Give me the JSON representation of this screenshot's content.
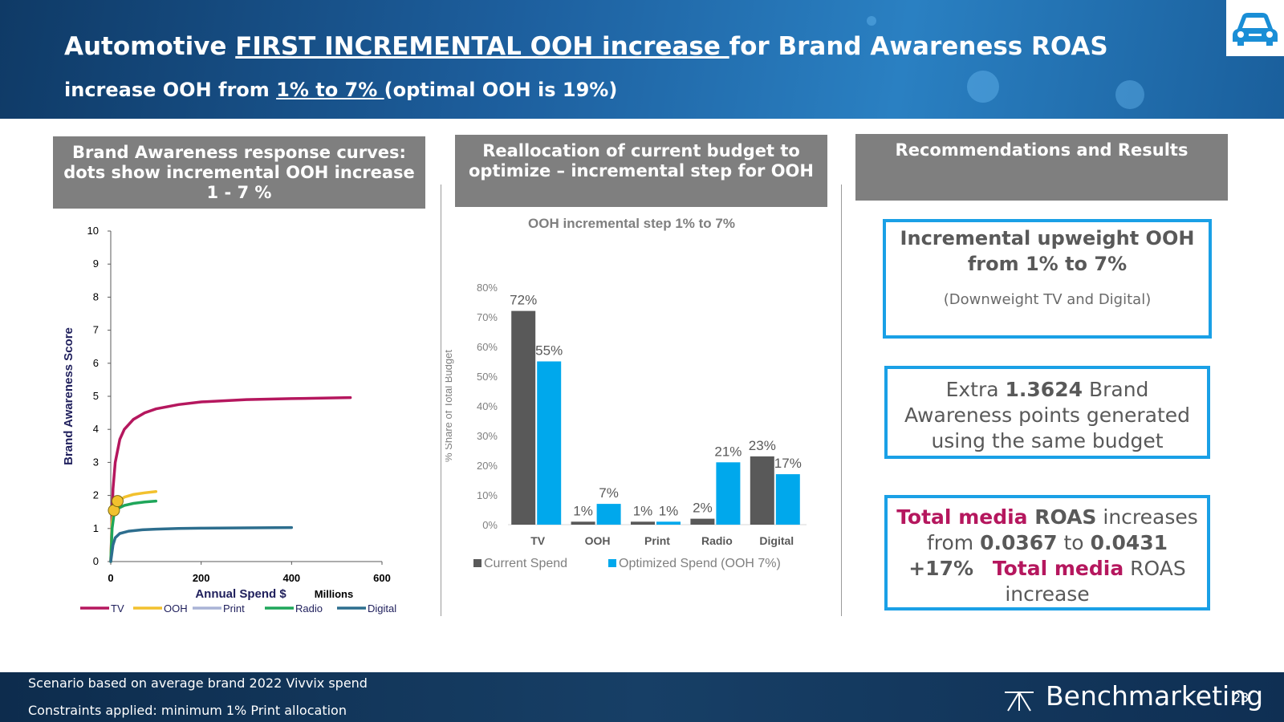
{
  "header": {
    "title_pre": "Automotive ",
    "title_underlined": "FIRST INCREMENTAL OOH increase ",
    "title_post": "for Brand Awareness ROAS",
    "subtitle_pre": "increase OOH from ",
    "subtitle_underlined": "1% to 7% ",
    "subtitle_post": "(optimal OOH is 19%)",
    "icon": "car-icon"
  },
  "columns": {
    "left_header_line1": "Brand Awareness response curves:",
    "left_header_line2": "dots show incremental OOH increase",
    "left_header_line3": "1 - 7 %",
    "mid_header_line1": "Reallocation of current budget to",
    "mid_header_line2": "optimize – incremental step for OOH",
    "right_header": "Recommendations and Results"
  },
  "recommendations": {
    "box1_line1": "Incremental upweight OOH",
    "box1_line2": "from 1% to 7%",
    "box1_note": "(Downweight TV and Digital)",
    "box2_pre": "Extra ",
    "box2_value": "1.3624",
    "box2_line1_post": " Brand",
    "box2_line2": "Awareness points generated",
    "box2_line3": "using the same budget",
    "box3_pink1": "Total media",
    "box3_roas": " ROAS",
    "box3_increases": " increases",
    "box3_from": "from ",
    "box3_old": "0.0367",
    "box3_to": " to ",
    "box3_new": "0.0431",
    "box3_pct": "+17%",
    "box3_pink2": "Total media",
    "box3_roas2": " ROAS",
    "box3_increase": "increase"
  },
  "footer": {
    "line1": "Scenario based on average brand 2022  Vivvix spend",
    "line2": "Constraints applied: minimum  1% Print allocation",
    "brand": "Benchmarketing",
    "page_number": "23"
  },
  "colors": {
    "tv": "#b5175e",
    "ooh": "#f2c12e",
    "print": "#a9b3d6",
    "radio": "#1fa65a",
    "digital": "#2d6e8e",
    "current": "#595959",
    "optimized": "#00a8ec",
    "box_border": "#1aa0e6"
  },
  "chart_data": [
    {
      "type": "line",
      "title": "",
      "xlabel": "Annual Spend $",
      "xlabel_unit": "Millions",
      "ylabel": "Brand Awareness Score",
      "xlim": [
        0,
        600
      ],
      "ylim": [
        0,
        10
      ],
      "x_ticks": [
        "0",
        "200",
        "400",
        "600"
      ],
      "y_ticks": [
        "0",
        "1",
        "2",
        "3",
        "4",
        "5",
        "6",
        "7",
        "8",
        "9",
        "10"
      ],
      "legend_position": "bottom",
      "series": [
        {
          "name": "TV",
          "x": [
            0,
            5,
            10,
            20,
            30,
            50,
            75,
            100,
            150,
            200,
            300,
            400,
            530
          ],
          "y": [
            0,
            2.2,
            3.0,
            3.7,
            4.0,
            4.3,
            4.5,
            4.62,
            4.75,
            4.83,
            4.9,
            4.93,
            4.96
          ]
        },
        {
          "name": "OOH",
          "x": [
            0,
            3,
            7,
            15,
            30,
            50,
            75,
            100
          ],
          "y": [
            0,
            1.2,
            1.6,
            1.8,
            1.95,
            2.03,
            2.08,
            2.12
          ]
        },
        {
          "name": "Print",
          "x": [],
          "y": []
        },
        {
          "name": "Radio",
          "x": [
            0,
            3,
            7,
            15,
            30,
            50,
            75,
            100
          ],
          "y": [
            0,
            1.0,
            1.4,
            1.6,
            1.7,
            1.76,
            1.8,
            1.83
          ]
        },
        {
          "name": "Digital",
          "x": [
            0,
            5,
            10,
            20,
            40,
            70,
            100,
            150,
            200,
            300,
            400
          ],
          "y": [
            0,
            0.5,
            0.72,
            0.85,
            0.92,
            0.96,
            0.98,
            1.0,
            1.01,
            1.02,
            1.03
          ]
        }
      ],
      "markers": [
        {
          "label": "OOH 1%",
          "x": 7,
          "y": 1.55
        },
        {
          "label": "OOH 7%",
          "x": 15,
          "y": 1.83
        }
      ]
    },
    {
      "type": "bar",
      "title": "OOH incremental step 1% to 7%",
      "xlabel": "",
      "ylabel": "% Share of Total Budget",
      "ylim": [
        0,
        80
      ],
      "y_ticks": [
        "0%",
        "10%",
        "20%",
        "30%",
        "40%",
        "50%",
        "60%",
        "70%",
        "80%"
      ],
      "legend_position": "bottom",
      "categories": [
        "TV",
        "OOH",
        "Print",
        "Radio",
        "Digital"
      ],
      "series": [
        {
          "name": "Current Spend",
          "values": [
            72,
            1,
            1,
            2,
            23
          ],
          "labels": [
            "72%",
            "1%",
            "1%",
            "2%",
            "23%"
          ]
        },
        {
          "name": "Optimized Spend (OOH 7%)",
          "values": [
            55,
            7,
            1,
            21,
            17
          ],
          "labels": [
            "55%",
            "7%",
            "1%",
            "21%",
            "17%"
          ]
        }
      ]
    }
  ]
}
